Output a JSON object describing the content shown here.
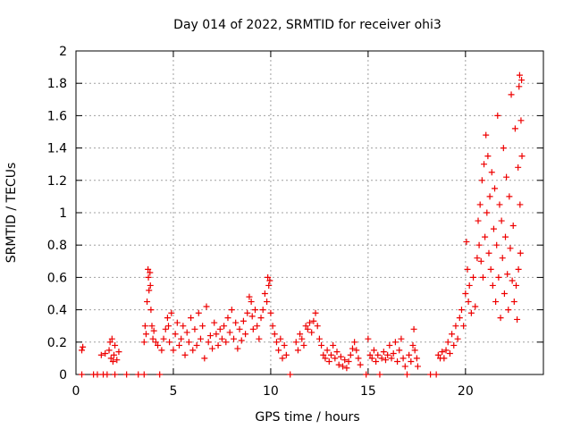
{
  "chart_data": {
    "type": "scatter",
    "title": "Day 014 of 2022, SRMTID for receiver ohi3",
    "xlabel": "GPS time / hours",
    "ylabel": "SRMTID / TECUs",
    "xlim": [
      0,
      24
    ],
    "ylim": [
      0,
      2
    ],
    "xticks": [
      0,
      5,
      10,
      15,
      20
    ],
    "xtick_labels": [
      "0",
      "5",
      "10",
      "15",
      "20"
    ],
    "yticks": [
      0,
      0.2,
      0.4,
      0.6,
      0.8,
      1,
      1.2,
      1.4,
      1.6,
      1.8,
      2
    ],
    "ytick_labels": [
      "0",
      "0.2",
      "0.4",
      "0.6",
      "0.8",
      "1",
      "1.2",
      "1.4",
      "1.6",
      "1.8",
      "2"
    ],
    "grid": true,
    "series": [
      {
        "name": "SRMTID",
        "marker": "+",
        "color": "#ee0000",
        "points": [
          [
            0.3,
            0.15
          ],
          [
            0.35,
            0.17
          ],
          [
            0.3,
            0.0
          ],
          [
            0.9,
            0.0
          ],
          [
            1.1,
            0.0
          ],
          [
            1.3,
            0.12
          ],
          [
            1.4,
            0.0
          ],
          [
            1.5,
            0.13
          ],
          [
            1.6,
            0.0
          ],
          [
            1.7,
            0.15
          ],
          [
            1.75,
            0.2
          ],
          [
            1.8,
            0.1
          ],
          [
            1.85,
            0.22
          ],
          [
            1.9,
            0.08
          ],
          [
            1.95,
            0.12
          ],
          [
            2.0,
            0.18
          ],
          [
            2.1,
            0.09
          ],
          [
            2.2,
            0.14
          ],
          [
            2.0,
            0.0
          ],
          [
            2.6,
            0.0
          ],
          [
            3.2,
            0.0
          ],
          [
            3.5,
            0.0
          ],
          [
            3.5,
            0.2
          ],
          [
            3.55,
            0.3
          ],
          [
            3.6,
            0.25
          ],
          [
            3.65,
            0.45
          ],
          [
            3.7,
            0.65
          ],
          [
            3.72,
            0.6
          ],
          [
            3.75,
            0.52
          ],
          [
            3.8,
            0.63
          ],
          [
            3.82,
            0.55
          ],
          [
            3.85,
            0.4
          ],
          [
            3.9,
            0.3
          ],
          [
            3.95,
            0.22
          ],
          [
            4.0,
            0.27
          ],
          [
            4.1,
            0.2
          ],
          [
            4.2,
            0.18
          ],
          [
            4.3,
            0.0
          ],
          [
            4.4,
            0.15
          ],
          [
            4.5,
            0.22
          ],
          [
            4.6,
            0.28
          ],
          [
            4.7,
            0.35
          ],
          [
            4.75,
            0.3
          ],
          [
            4.8,
            0.2
          ],
          [
            4.9,
            0.38
          ],
          [
            5.0,
            0.15
          ],
          [
            5.1,
            0.25
          ],
          [
            5.2,
            0.32
          ],
          [
            5.3,
            0.18
          ],
          [
            5.4,
            0.22
          ],
          [
            5.5,
            0.3
          ],
          [
            5.6,
            0.12
          ],
          [
            5.7,
            0.26
          ],
          [
            5.8,
            0.2
          ],
          [
            5.9,
            0.35
          ],
          [
            6.0,
            0.15
          ],
          [
            6.1,
            0.28
          ],
          [
            6.2,
            0.18
          ],
          [
            6.3,
            0.38
          ],
          [
            6.4,
            0.22
          ],
          [
            6.5,
            0.3
          ],
          [
            6.6,
            0.1
          ],
          [
            6.7,
            0.42
          ],
          [
            6.8,
            0.2
          ],
          [
            6.9,
            0.24
          ],
          [
            7.0,
            0.16
          ],
          [
            7.1,
            0.32
          ],
          [
            7.2,
            0.25
          ],
          [
            7.3,
            0.18
          ],
          [
            7.4,
            0.28
          ],
          [
            7.5,
            0.22
          ],
          [
            7.6,
            0.3
          ],
          [
            7.7,
            0.2
          ],
          [
            7.8,
            0.35
          ],
          [
            7.9,
            0.26
          ],
          [
            8.0,
            0.4
          ],
          [
            8.1,
            0.22
          ],
          [
            8.2,
            0.32
          ],
          [
            8.3,
            0.16
          ],
          [
            8.4,
            0.28
          ],
          [
            8.5,
            0.21
          ],
          [
            8.6,
            0.33
          ],
          [
            8.7,
            0.25
          ],
          [
            8.8,
            0.38
          ],
          [
            8.9,
            0.48
          ],
          [
            9.0,
            0.45
          ],
          [
            9.05,
            0.36
          ],
          [
            9.1,
            0.28
          ],
          [
            9.2,
            0.4
          ],
          [
            9.3,
            0.3
          ],
          [
            9.4,
            0.22
          ],
          [
            9.5,
            0.35
          ],
          [
            9.6,
            0.4
          ],
          [
            9.7,
            0.5
          ],
          [
            9.8,
            0.45
          ],
          [
            9.85,
            0.6
          ],
          [
            9.9,
            0.55
          ],
          [
            9.95,
            0.58
          ],
          [
            10.0,
            0.38
          ],
          [
            10.1,
            0.3
          ],
          [
            10.2,
            0.25
          ],
          [
            10.3,
            0.2
          ],
          [
            10.4,
            0.15
          ],
          [
            10.5,
            0.22
          ],
          [
            10.6,
            0.1
          ],
          [
            10.7,
            0.18
          ],
          [
            10.8,
            0.12
          ],
          [
            11.0,
            0.0
          ],
          [
            11.3,
            0.2
          ],
          [
            11.4,
            0.15
          ],
          [
            11.5,
            0.25
          ],
          [
            11.6,
            0.22
          ],
          [
            11.7,
            0.18
          ],
          [
            11.8,
            0.3
          ],
          [
            11.9,
            0.28
          ],
          [
            12.0,
            0.32
          ],
          [
            12.1,
            0.26
          ],
          [
            12.2,
            0.33
          ],
          [
            12.3,
            0.38
          ],
          [
            12.4,
            0.3
          ],
          [
            12.5,
            0.22
          ],
          [
            12.6,
            0.18
          ],
          [
            12.7,
            0.12
          ],
          [
            12.8,
            0.1
          ],
          [
            12.9,
            0.15
          ],
          [
            13.0,
            0.08
          ],
          [
            13.1,
            0.12
          ],
          [
            13.2,
            0.18
          ],
          [
            13.3,
            0.1
          ],
          [
            13.4,
            0.14
          ],
          [
            13.5,
            0.06
          ],
          [
            13.6,
            0.11
          ],
          [
            13.7,
            0.05
          ],
          [
            13.8,
            0.09
          ],
          [
            13.9,
            0.04
          ],
          [
            14.0,
            0.08
          ],
          [
            14.1,
            0.12
          ],
          [
            14.2,
            0.16
          ],
          [
            14.3,
            0.2
          ],
          [
            14.4,
            0.15
          ],
          [
            14.5,
            0.1
          ],
          [
            14.6,
            0.06
          ],
          [
            14.9,
            0.0
          ],
          [
            15.0,
            0.22
          ],
          [
            15.1,
            0.12
          ],
          [
            15.2,
            0.1
          ],
          [
            15.3,
            0.15
          ],
          [
            15.4,
            0.08
          ],
          [
            15.5,
            0.12
          ],
          [
            15.6,
            0.0
          ],
          [
            15.7,
            0.1
          ],
          [
            15.8,
            0.14
          ],
          [
            15.9,
            0.09
          ],
          [
            16.0,
            0.12
          ],
          [
            16.1,
            0.18
          ],
          [
            16.2,
            0.1
          ],
          [
            16.3,
            0.13
          ],
          [
            16.4,
            0.2
          ],
          [
            16.5,
            0.08
          ],
          [
            16.6,
            0.15
          ],
          [
            16.7,
            0.22
          ],
          [
            16.8,
            0.1
          ],
          [
            16.9,
            0.05
          ],
          [
            17.0,
            0.0
          ],
          [
            17.1,
            0.12
          ],
          [
            17.2,
            0.08
          ],
          [
            17.3,
            0.18
          ],
          [
            17.35,
            0.28
          ],
          [
            17.4,
            0.15
          ],
          [
            17.5,
            0.1
          ],
          [
            17.55,
            0.05
          ],
          [
            18.2,
            0.0
          ],
          [
            18.5,
            0.0
          ],
          [
            18.6,
            0.12
          ],
          [
            18.7,
            0.1
          ],
          [
            18.8,
            0.14
          ],
          [
            18.9,
            0.1
          ],
          [
            19.0,
            0.15
          ],
          [
            19.1,
            0.2
          ],
          [
            19.2,
            0.13
          ],
          [
            19.3,
            0.25
          ],
          [
            19.4,
            0.18
          ],
          [
            19.5,
            0.3
          ],
          [
            19.6,
            0.22
          ],
          [
            19.7,
            0.35
          ],
          [
            19.8,
            0.4
          ],
          [
            19.9,
            0.3
          ],
          [
            20.0,
            0.5
          ],
          [
            20.05,
            0.82
          ],
          [
            20.1,
            0.65
          ],
          [
            20.15,
            0.45
          ],
          [
            20.2,
            0.55
          ],
          [
            20.3,
            0.38
          ],
          [
            20.4,
            0.6
          ],
          [
            20.5,
            0.42
          ],
          [
            20.6,
            0.72
          ],
          [
            20.65,
            0.95
          ],
          [
            20.7,
            0.8
          ],
          [
            20.75,
            1.05
          ],
          [
            20.8,
            0.7
          ],
          [
            20.85,
            1.2
          ],
          [
            20.9,
            0.6
          ],
          [
            20.95,
            1.3
          ],
          [
            21.0,
            0.85
          ],
          [
            21.05,
            1.48
          ],
          [
            21.1,
            1.0
          ],
          [
            21.15,
            1.35
          ],
          [
            21.2,
            0.75
          ],
          [
            21.25,
            1.1
          ],
          [
            21.3,
            0.65
          ],
          [
            21.35,
            1.25
          ],
          [
            21.4,
            0.55
          ],
          [
            21.45,
            0.9
          ],
          [
            21.5,
            1.15
          ],
          [
            21.55,
            0.45
          ],
          [
            21.6,
            0.8
          ],
          [
            21.65,
            1.6
          ],
          [
            21.7,
            0.6
          ],
          [
            21.75,
            1.05
          ],
          [
            21.8,
            0.35
          ],
          [
            21.85,
            0.95
          ],
          [
            21.9,
            0.72
          ],
          [
            21.95,
            1.4
          ],
          [
            22.0,
            0.5
          ],
          [
            22.05,
            0.85
          ],
          [
            22.1,
            1.22
          ],
          [
            22.15,
            0.62
          ],
          [
            22.2,
            0.4
          ],
          [
            22.25,
            1.1
          ],
          [
            22.3,
            0.78
          ],
          [
            22.35,
            1.73
          ],
          [
            22.4,
            0.58
          ],
          [
            22.45,
            0.92
          ],
          [
            22.5,
            0.45
          ],
          [
            22.55,
            1.52
          ],
          [
            22.6,
            0.55
          ],
          [
            22.65,
            0.34
          ],
          [
            22.7,
            1.28
          ],
          [
            22.72,
            0.65
          ],
          [
            22.75,
            1.78
          ],
          [
            22.78,
            1.85
          ],
          [
            22.8,
            1.05
          ],
          [
            22.82,
            0.75
          ],
          [
            22.85,
            1.57
          ],
          [
            22.88,
            1.82
          ],
          [
            22.9,
            1.35
          ]
        ]
      }
    ]
  }
}
